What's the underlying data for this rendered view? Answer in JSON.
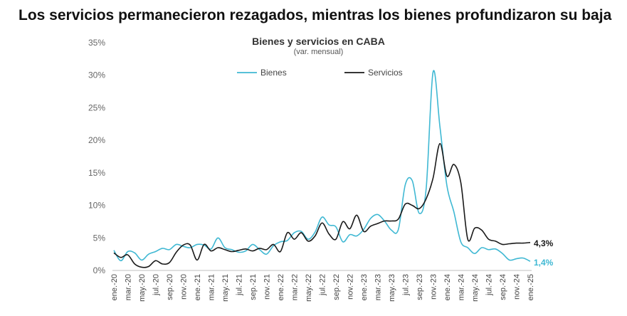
{
  "headline": "Los servicios permanecieron rezagados, mientras los bienes profundizaron su baja",
  "chart_data": {
    "type": "line",
    "title": "Bienes y servicios en CABA",
    "subtitle": "(var. mensual)",
    "xlabel": "",
    "ylabel": "",
    "ylim": [
      0,
      35
    ],
    "yticks": [
      0,
      5,
      10,
      15,
      20,
      25,
      30,
      35
    ],
    "ytick_labels": [
      "0%",
      "5%",
      "10%",
      "15%",
      "20%",
      "25%",
      "30%",
      "35%"
    ],
    "grid": false,
    "legend": "top-center",
    "x_tick_labels": [
      "ene.-20",
      "mar.-20",
      "may.-20",
      "jul.-20",
      "sep.-20",
      "nov.-20",
      "ene.-21",
      "mar.-21",
      "may.-21",
      "jul.-21",
      "sep.-21",
      "nov.-21",
      "ene.-22",
      "mar.-22",
      "may.-22",
      "jul.-22",
      "sep.-22",
      "nov.-22",
      "ene.-23",
      "mar.-23",
      "may.-23",
      "jul.-23",
      "sep.-23",
      "nov.-23",
      "ene.-24",
      "mar.-24",
      "may.-24",
      "jul.-24",
      "sep.-24",
      "nov.-24",
      "ene.-25"
    ],
    "x": [
      "ene.-20",
      "feb.-20",
      "mar.-20",
      "abr.-20",
      "may.-20",
      "jun.-20",
      "jul.-20",
      "ago.-20",
      "sep.-20",
      "oct.-20",
      "nov.-20",
      "dic.-20",
      "ene.-21",
      "feb.-21",
      "mar.-21",
      "abr.-21",
      "may.-21",
      "jun.-21",
      "jul.-21",
      "ago.-21",
      "sep.-21",
      "oct.-21",
      "nov.-21",
      "dic.-21",
      "ene.-22",
      "feb.-22",
      "mar.-22",
      "abr.-22",
      "may.-22",
      "jun.-22",
      "jul.-22",
      "ago.-22",
      "sep.-22",
      "oct.-22",
      "nov.-22",
      "dic.-22",
      "ene.-23",
      "feb.-23",
      "mar.-23",
      "abr.-23",
      "may.-23",
      "jun.-23",
      "jul.-23",
      "ago.-23",
      "sep.-23",
      "oct.-23",
      "nov.-23",
      "dic.-23",
      "ene.-24",
      "feb.-24",
      "mar.-24",
      "abr.-24",
      "may.-24",
      "jun.-24",
      "jul.-24",
      "ago.-24",
      "sep.-24",
      "oct.-24",
      "nov.-24",
      "dic.-24",
      "ene.-25"
    ],
    "series": [
      {
        "name": "Bienes",
        "color": "#3fb8d3",
        "end_label": "1,4%",
        "values": [
          3.1,
          1.5,
          2.9,
          2.7,
          1.6,
          2.5,
          2.9,
          3.4,
          3.2,
          4.0,
          3.7,
          3.5,
          4.0,
          3.9,
          3.3,
          5.0,
          3.5,
          3.2,
          2.8,
          3.0,
          4.0,
          3.2,
          2.5,
          3.8,
          4.4,
          4.6,
          5.8,
          6.0,
          4.8,
          5.9,
          8.2,
          7.0,
          6.7,
          4.4,
          5.5,
          5.3,
          6.3,
          8.0,
          8.6,
          7.6,
          6.2,
          6.3,
          13.2,
          13.8,
          8.8,
          12.5,
          30.5,
          22.0,
          13.0,
          9.0,
          4.4,
          3.5,
          2.6,
          3.5,
          3.2,
          3.3,
          2.6,
          1.6,
          1.8,
          1.9,
          1.4
        ]
      },
      {
        "name": "Servicios",
        "color": "#1a1a1a",
        "end_label": "4,3%",
        "values": [
          2.7,
          2.0,
          2.4,
          1.0,
          0.5,
          0.6,
          1.5,
          1.0,
          1.2,
          2.8,
          3.9,
          3.9,
          1.6,
          4.0,
          3.0,
          3.5,
          3.2,
          2.9,
          3.1,
          3.3,
          3.0,
          3.4,
          3.2,
          4.0,
          2.9,
          5.8,
          4.8,
          5.8,
          4.5,
          5.3,
          7.3,
          5.6,
          4.8,
          7.5,
          6.4,
          8.5,
          6.0,
          6.8,
          7.2,
          7.6,
          7.6,
          7.9,
          10.2,
          10.0,
          9.5,
          11.0,
          14.2,
          19.5,
          14.5,
          16.3,
          13.5,
          4.8,
          6.5,
          6.2,
          4.8,
          4.5,
          4.0,
          4.1,
          4.2,
          4.2,
          4.3
        ]
      }
    ]
  }
}
